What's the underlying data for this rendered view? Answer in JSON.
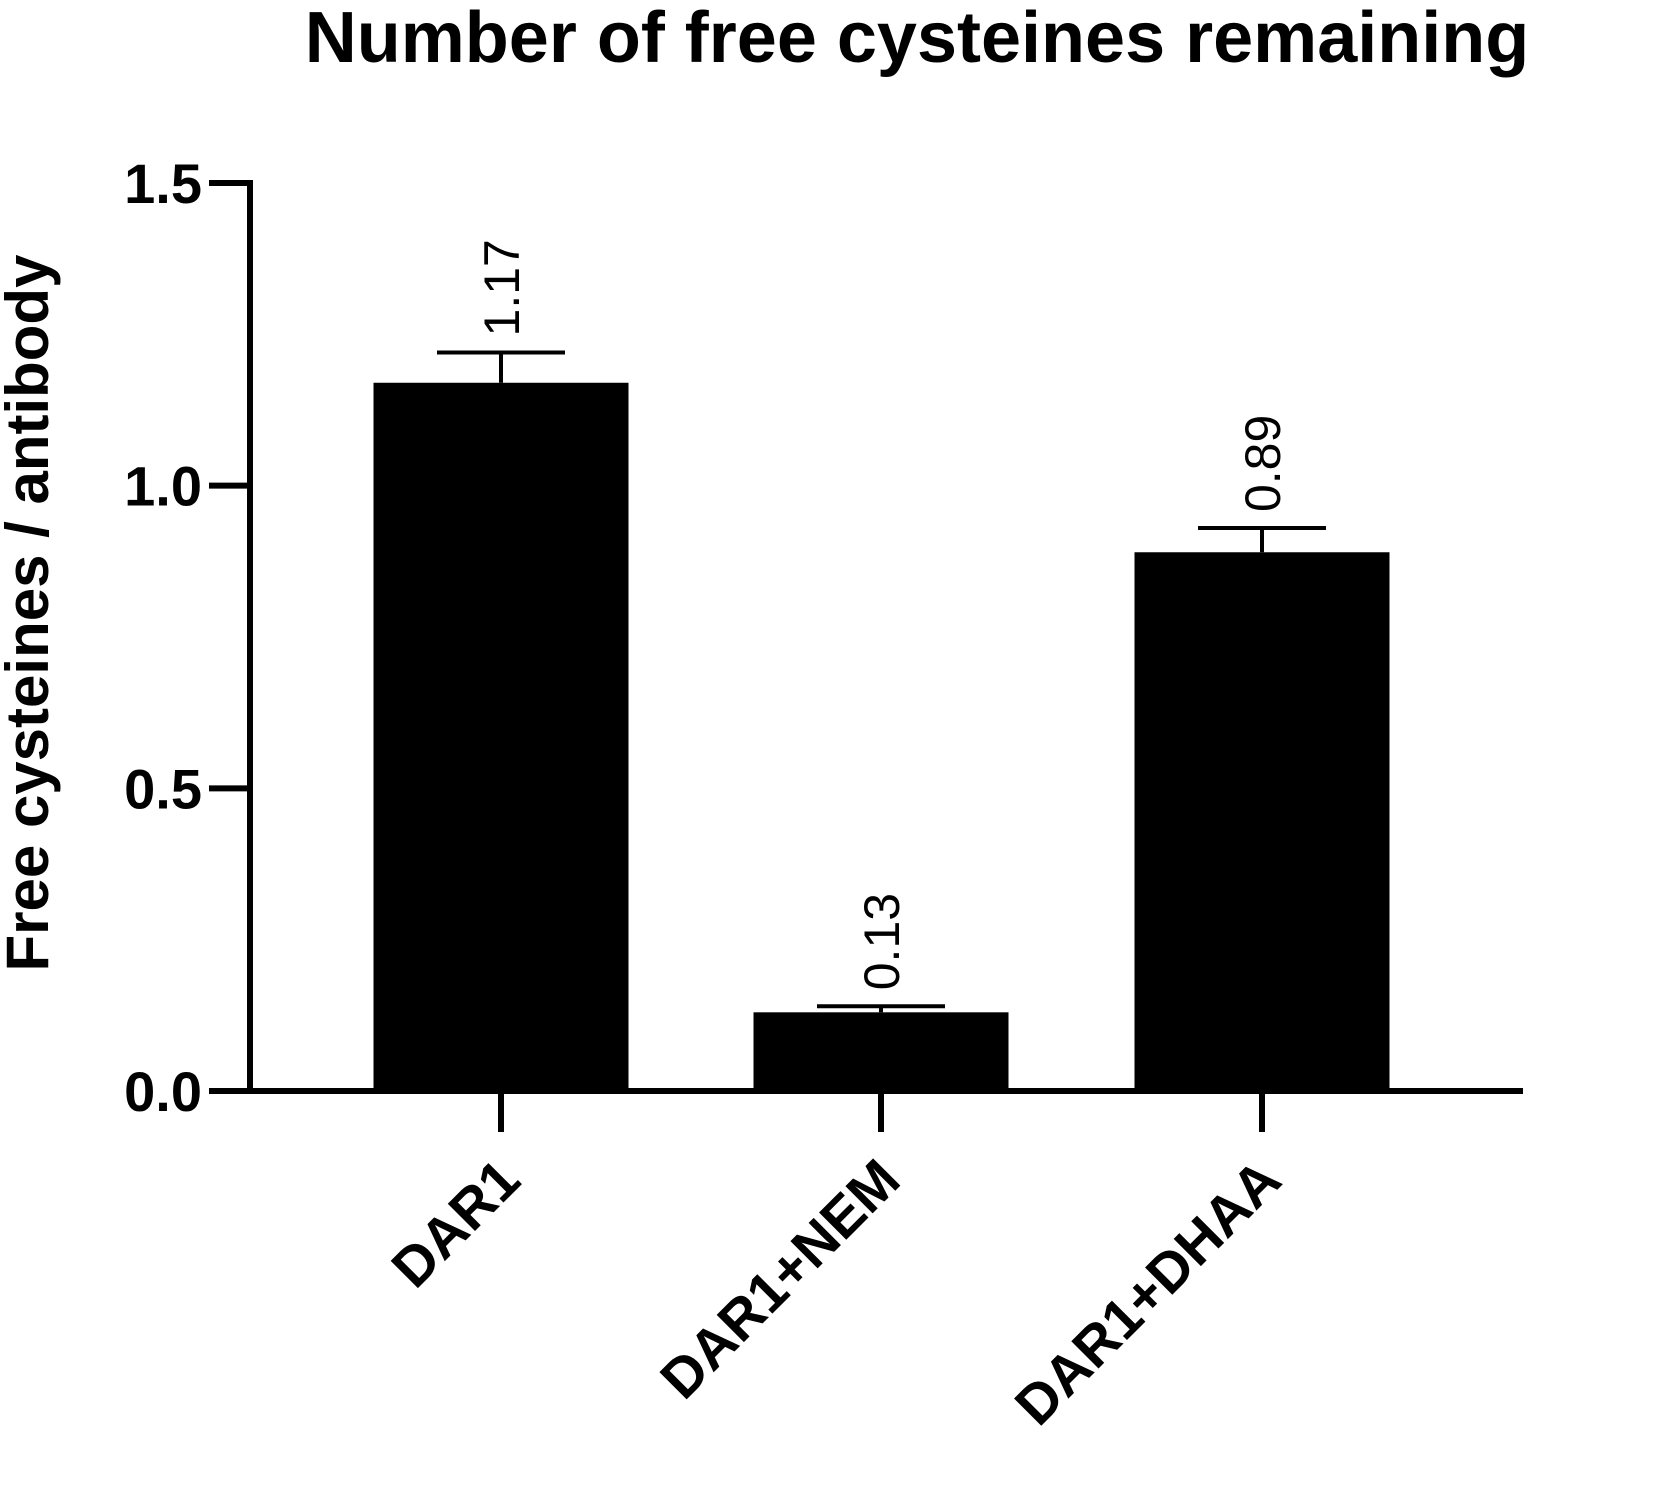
{
  "chart_data": {
    "type": "bar",
    "title": "Number of free cysteines remaining",
    "ylabel": "Free cysteines / antibody",
    "xlabel": "",
    "categories": [
      "DAR1",
      "DAR1+NEM",
      "DAR1+DHAA"
    ],
    "values": [
      1.17,
      0.13,
      0.89
    ],
    "error": [
      0.05,
      0.01,
      0.04
    ],
    "data_labels": [
      "1.17",
      "0.13",
      "0.89"
    ],
    "ylim": [
      0,
      1.5
    ],
    "yticks": [
      0.0,
      0.5,
      1.0,
      1.5
    ],
    "ytick_labels": [
      "0.0",
      "0.5",
      "1.0",
      "1.5"
    ],
    "bar_color": "#000000",
    "grid": false,
    "legend": "none"
  }
}
